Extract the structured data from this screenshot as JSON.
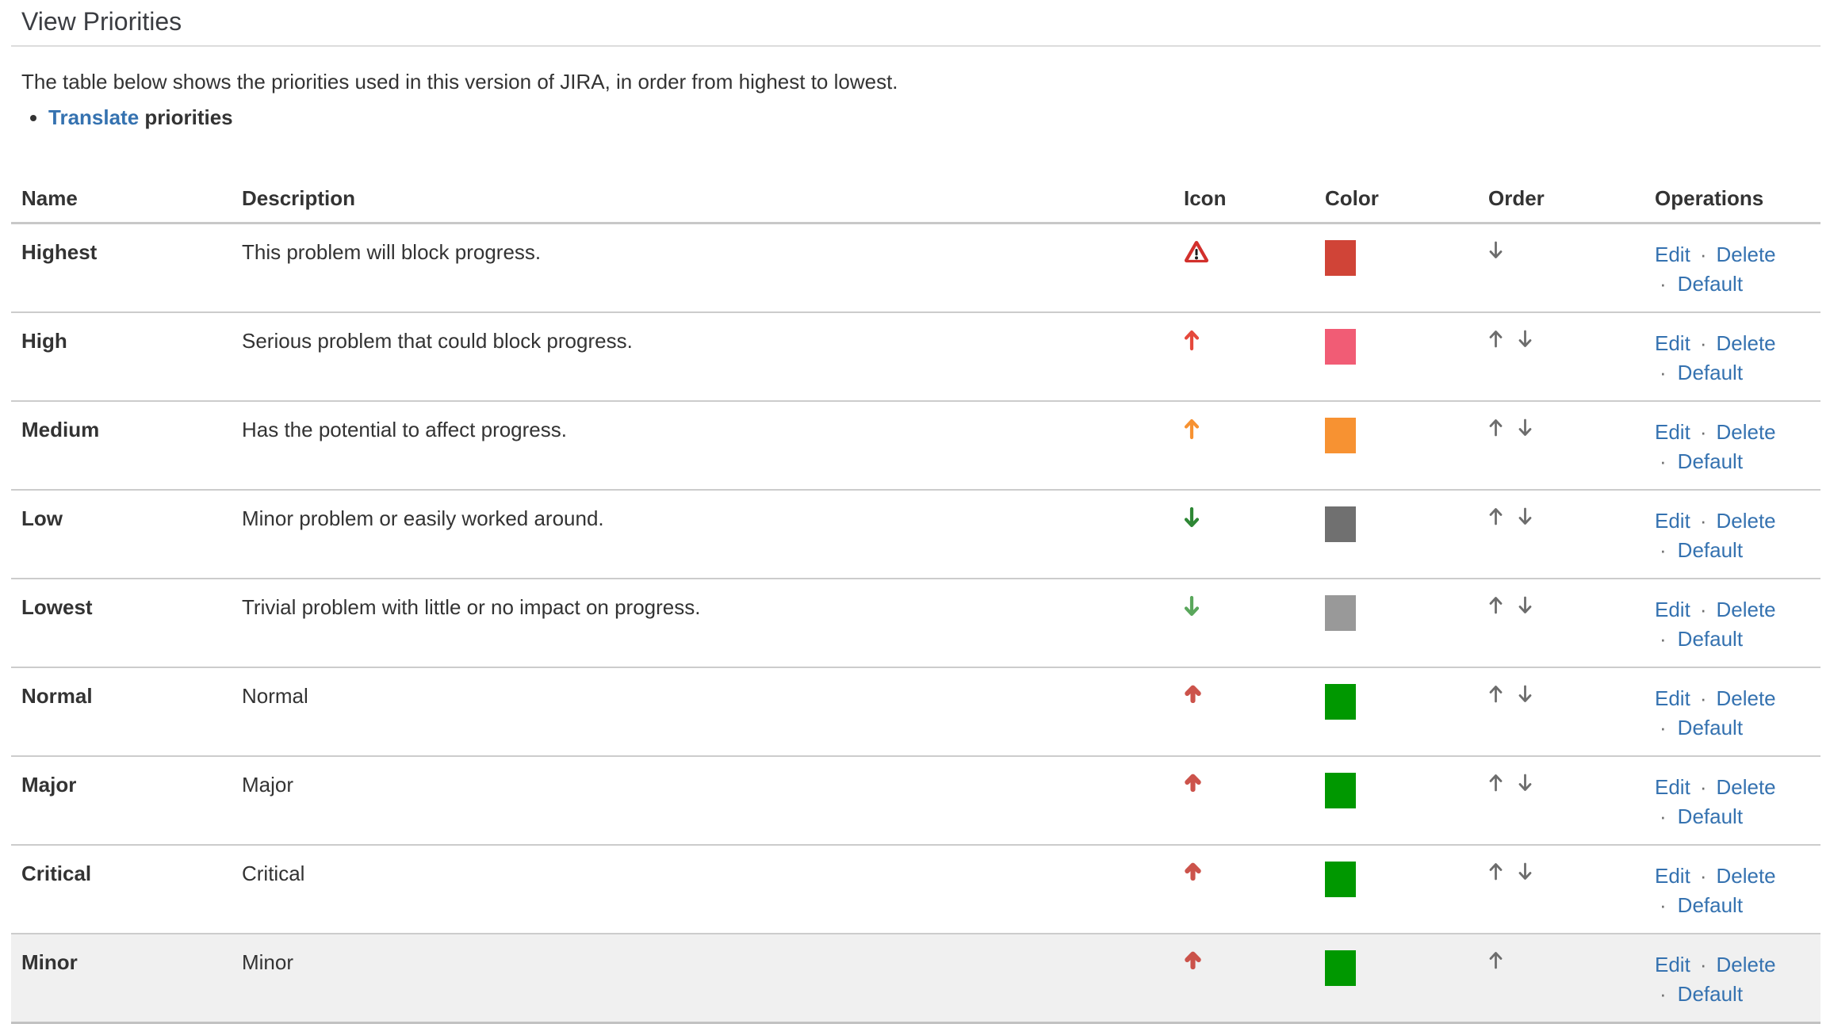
{
  "page": {
    "title": "View Priorities",
    "intro": "The table below shows the priorities used in this version of JIRA, in order from highest to lowest.",
    "translate_link": "Translate",
    "translate_suffix": " priorities"
  },
  "colors": {
    "link": "#3572b0",
    "separator": "#6f6f6f",
    "order_arrow": "#6d6d6d",
    "row_divider": "#cccccc",
    "header_border": "#c8c8c8",
    "highlight_row_bg": "#f0f0f0",
    "title_rule": "#dcdcdc"
  },
  "table": {
    "headers": [
      "Name",
      "Description",
      "Icon",
      "Color",
      "Order",
      "Operations"
    ],
    "operations_separator": "·",
    "rows": [
      {
        "name": "Highest",
        "description": "This problem will block progress.",
        "icon": "warning-triangle",
        "icon_color": "#d2302c",
        "color": "#d04437",
        "order": [
          "down"
        ],
        "operations": [
          "Edit",
          "Delete",
          "Default"
        ],
        "highlighted": false
      },
      {
        "name": "High",
        "description": "Serious problem that could block progress.",
        "icon": "arrow-up",
        "icon_color": "#e5493c",
        "color": "#f15c75",
        "order": [
          "up",
          "down"
        ],
        "operations": [
          "Edit",
          "Delete",
          "Default"
        ],
        "highlighted": false
      },
      {
        "name": "Medium",
        "description": "Has the potential to affect progress.",
        "icon": "arrow-up",
        "icon_color": "#f79232",
        "color": "#f79232",
        "order": [
          "up",
          "down"
        ],
        "operations": [
          "Edit",
          "Delete",
          "Default"
        ],
        "highlighted": false
      },
      {
        "name": "Low",
        "description": "Minor problem or easily worked around.",
        "icon": "arrow-down",
        "icon_color": "#2e8735",
        "color": "#707070",
        "order": [
          "up",
          "down"
        ],
        "operations": [
          "Edit",
          "Delete",
          "Default"
        ],
        "highlighted": false
      },
      {
        "name": "Lowest",
        "description": "Trivial problem with little or no impact on progress.",
        "icon": "arrow-down",
        "icon_color": "#5aa75c",
        "color": "#999999",
        "order": [
          "up",
          "down"
        ],
        "operations": [
          "Edit",
          "Delete",
          "Default"
        ],
        "highlighted": false
      },
      {
        "name": "Normal",
        "description": "Normal",
        "icon": "arrow-up-bold",
        "icon_color": "#c8453c",
        "color": "#009800",
        "order": [
          "up",
          "down"
        ],
        "operations": [
          "Edit",
          "Delete",
          "Default"
        ],
        "highlighted": false
      },
      {
        "name": "Major",
        "description": "Major",
        "icon": "arrow-up-bold",
        "icon_color": "#c8453c",
        "color": "#009800",
        "order": [
          "up",
          "down"
        ],
        "operations": [
          "Edit",
          "Delete",
          "Default"
        ],
        "highlighted": false
      },
      {
        "name": "Critical",
        "description": "Critical",
        "icon": "arrow-up-bold",
        "icon_color": "#c8453c",
        "color": "#009800",
        "order": [
          "up",
          "down"
        ],
        "operations": [
          "Edit",
          "Delete",
          "Default"
        ],
        "highlighted": false
      },
      {
        "name": "Minor",
        "description": "Minor",
        "icon": "arrow-up-bold",
        "icon_color": "#c8453c",
        "color": "#009800",
        "order": [
          "up"
        ],
        "operations": [
          "Edit",
          "Delete",
          "Default"
        ],
        "highlighted": true
      }
    ]
  }
}
